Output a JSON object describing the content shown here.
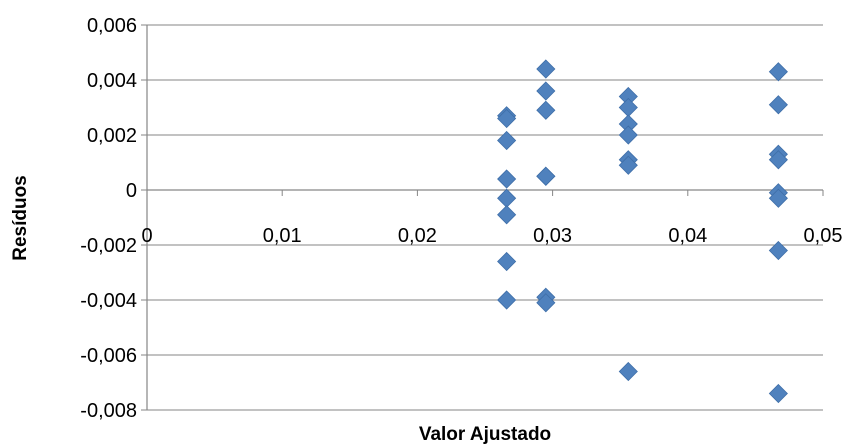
{
  "chart_data": {
    "type": "scatter",
    "title": "",
    "xlabel": "Valor Ajustado",
    "ylabel": "Resíduos",
    "xlim": [
      0,
      0.05
    ],
    "ylim": [
      -0.008,
      0.006
    ],
    "x_ticks": [
      0,
      0.01,
      0.02,
      0.03,
      0.04,
      0.05
    ],
    "x_tick_labels": [
      "0",
      "0,01",
      "0,02",
      "0,03",
      "0,04",
      "0,05"
    ],
    "y_ticks": [
      0.006,
      0.004,
      0.002,
      0,
      -0.002,
      -0.004,
      -0.006,
      -0.008
    ],
    "y_tick_labels": [
      "0,006",
      "0,004",
      "0,002",
      "0",
      "-0,002",
      "-0,004",
      "-0,006",
      "-0,008"
    ],
    "grid": true,
    "legend": "none",
    "marker": "diamond",
    "color": "#4f81bd",
    "points": [
      {
        "x": 0.0266,
        "y": 0.0027
      },
      {
        "x": 0.0266,
        "y": 0.0026
      },
      {
        "x": 0.0266,
        "y": 0.0018
      },
      {
        "x": 0.0266,
        "y": 0.0004
      },
      {
        "x": 0.0266,
        "y": -0.0003
      },
      {
        "x": 0.0266,
        "y": -0.0009
      },
      {
        "x": 0.0266,
        "y": -0.0026
      },
      {
        "x": 0.0266,
        "y": -0.004
      },
      {
        "x": 0.0295,
        "y": 0.0044
      },
      {
        "x": 0.0295,
        "y": 0.0036
      },
      {
        "x": 0.0295,
        "y": 0.0029
      },
      {
        "x": 0.0295,
        "y": 0.0005
      },
      {
        "x": 0.0295,
        "y": 0.0005
      },
      {
        "x": 0.0295,
        "y": -0.0039
      },
      {
        "x": 0.0295,
        "y": -0.0041
      },
      {
        "x": 0.0356,
        "y": 0.0034
      },
      {
        "x": 0.0356,
        "y": 0.003
      },
      {
        "x": 0.0356,
        "y": 0.0024
      },
      {
        "x": 0.0356,
        "y": 0.002
      },
      {
        "x": 0.0356,
        "y": 0.0011
      },
      {
        "x": 0.0356,
        "y": 0.0009
      },
      {
        "x": 0.0356,
        "y": -0.0066
      },
      {
        "x": 0.0467,
        "y": 0.0043
      },
      {
        "x": 0.0467,
        "y": 0.0031
      },
      {
        "x": 0.0467,
        "y": 0.0013
      },
      {
        "x": 0.0467,
        "y": 0.0011
      },
      {
        "x": 0.0467,
        "y": -0.0001
      },
      {
        "x": 0.0467,
        "y": -0.0003
      },
      {
        "x": 0.0467,
        "y": -0.0022
      },
      {
        "x": 0.0467,
        "y": -0.0074
      }
    ]
  }
}
